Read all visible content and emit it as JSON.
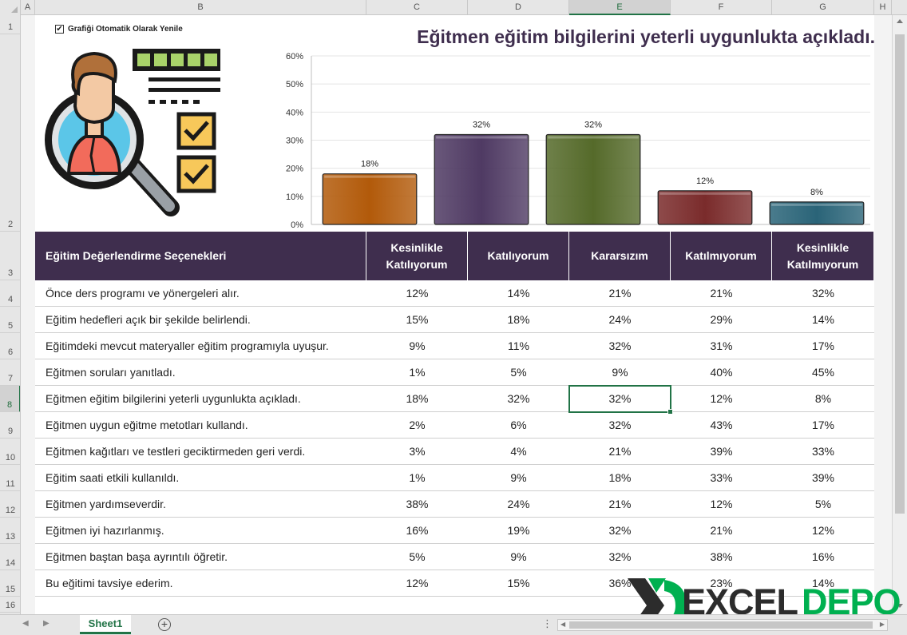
{
  "sheet": {
    "column_letters": [
      "A",
      "B",
      "C",
      "D",
      "E",
      "F",
      "G",
      "H"
    ],
    "selected_column": "E",
    "row_numbers": [
      "1",
      "2",
      "3",
      "4",
      "5",
      "6",
      "7",
      "8",
      "9",
      "10",
      "11",
      "12",
      "13",
      "14",
      "15",
      "16"
    ],
    "selected_row": "8",
    "tab_name": "Sheet1"
  },
  "checkbox": {
    "label": "Grafiği Otomatik Olarak Yenile",
    "checked": true
  },
  "chart_data": {
    "type": "bar",
    "title": "Eğitmen eğitim bilgilerini yeterli uygunlukta açıkladı.",
    "categories": [
      "Kesinlikle Katılıyorum",
      "Katılıyorum",
      "Kararsızım",
      "Katılmıyorum",
      "Kesinlikle Katılmıyorum"
    ],
    "values": [
      18,
      32,
      32,
      12,
      8
    ],
    "value_labels": [
      "18%",
      "32%",
      "32%",
      "12%",
      "8%"
    ],
    "bar_colors": [
      "#b25a0a",
      "#4f3a63",
      "#556a2a",
      "#7a2b2b",
      "#2a6478"
    ],
    "ylim": [
      0,
      60
    ],
    "yticks": [
      "0%",
      "10%",
      "20%",
      "30%",
      "40%",
      "50%",
      "60%"
    ],
    "grid": true,
    "legend": "none"
  },
  "table": {
    "headers": [
      "Eğitim Değerlendirme Seçenekleri",
      "Kesinlikle Katılıyorum",
      "Katılıyorum",
      "Kararsızım",
      "Katılmıyorum",
      "Kesinlikle Katılmıyorum"
    ],
    "rows": [
      [
        "Önce ders programı ve yönergeleri alır.",
        "12%",
        "14%",
        "21%",
        "21%",
        "32%"
      ],
      [
        "Eğitim hedefleri açık bir şekilde belirlendi.",
        "15%",
        "18%",
        "24%",
        "29%",
        "14%"
      ],
      [
        "Eğitimdeki mevcut materyaller eğitim programıyla uyuşur.",
        "9%",
        "11%",
        "32%",
        "31%",
        "17%"
      ],
      [
        "Eğitmen soruları yanıtladı.",
        "1%",
        "5%",
        "9%",
        "40%",
        "45%"
      ],
      [
        "Eğitmen eğitim bilgilerini yeterli uygunlukta açıkladı.",
        "18%",
        "32%",
        "32%",
        "12%",
        "8%"
      ],
      [
        "Eğitmen uygun eğitme metotları kullandı.",
        "2%",
        "6%",
        "32%",
        "43%",
        "17%"
      ],
      [
        "Eğitmen kağıtları ve testleri geciktirmeden geri verdi.",
        "3%",
        "4%",
        "21%",
        "39%",
        "33%"
      ],
      [
        "Eğitim saati etkili kullanıldı.",
        "1%",
        "9%",
        "18%",
        "33%",
        "39%"
      ],
      [
        "Eğitmen yardımseverdir.",
        "38%",
        "24%",
        "21%",
        "12%",
        "5%"
      ],
      [
        "Eğitmen iyi hazırlanmış.",
        "16%",
        "19%",
        "32%",
        "21%",
        "12%"
      ],
      [
        "Eğitmen baştan başa ayrıntılı öğretir.",
        "5%",
        "9%",
        "32%",
        "38%",
        "16%"
      ],
      [
        "Bu eğitimi tavsiye ederim.",
        "12%",
        "15%",
        "36%",
        "23%",
        "14%"
      ]
    ]
  },
  "colors": {
    "header_bg": "#3f2e4e",
    "accent": "#217346",
    "brand_green": "#00b050"
  },
  "watermark": {
    "part1": "EXCEL",
    "part2": "DEPO"
  }
}
